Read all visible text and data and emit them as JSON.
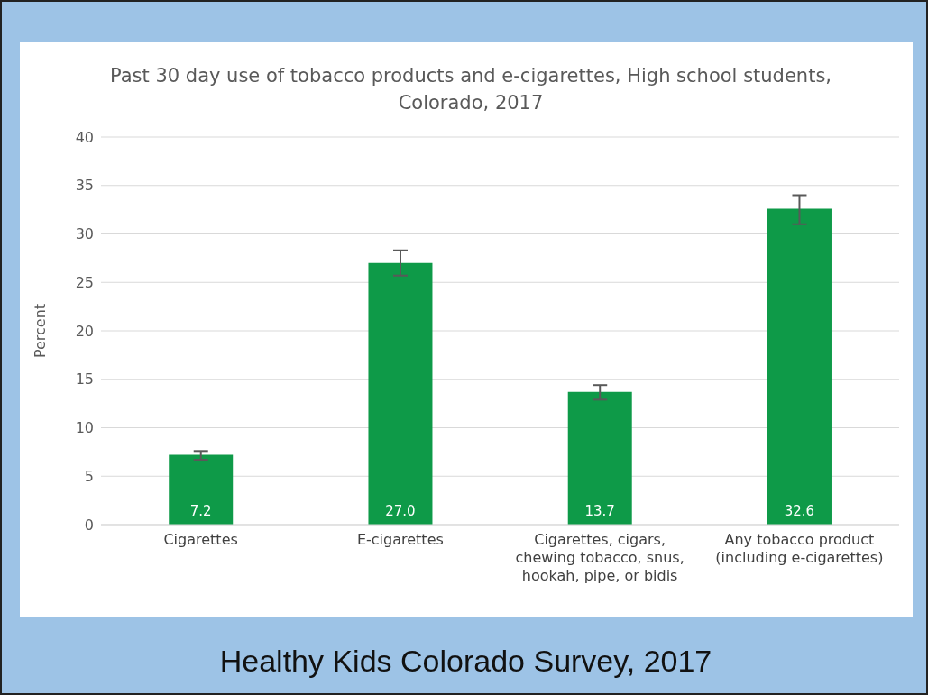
{
  "chart_data": {
    "type": "bar",
    "title": "Past 30 day use of tobacco products and e-cigarettes, High school students, Colorado, 2017",
    "ylabel": "Percent",
    "categories": [
      "Cigarettes",
      "E-cigarettes",
      "Cigarettes, cigars, chewing tobacco, snus, hookah, pipe, or bidis",
      "Any tobacco product (including e-cigarettes)"
    ],
    "values": [
      7.2,
      27.0,
      13.7,
      32.6
    ],
    "value_labels": [
      "7.2",
      "27.0",
      "13.7",
      "32.6"
    ],
    "errors": [
      [
        6.7,
        7.6
      ],
      [
        25.7,
        28.3
      ],
      [
        12.9,
        14.4
      ],
      [
        31.0,
        34.0
      ]
    ],
    "color": "#0e9a48",
    "ylim": [
      0,
      40
    ],
    "yticks": [
      0,
      5,
      10,
      15,
      20,
      25,
      30,
      35,
      40
    ],
    "grid": "y",
    "annotations": [
      "Healthy Kids Colorado Survey, 2017"
    ]
  }
}
